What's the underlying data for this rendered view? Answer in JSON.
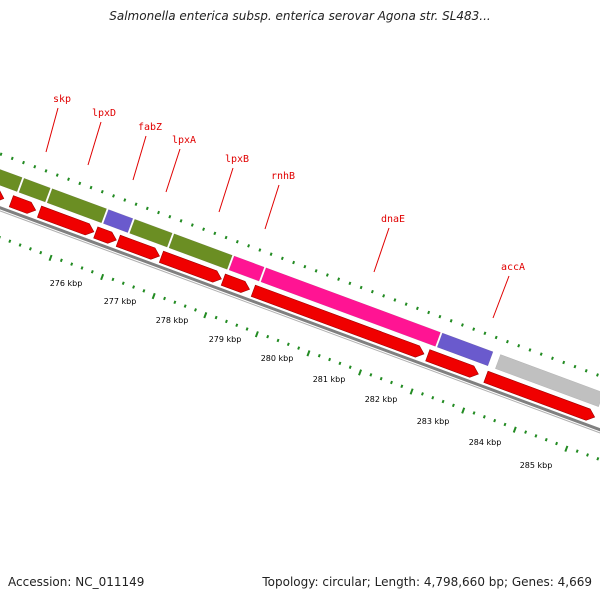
{
  "title": "Salmonella enterica subsp. enterica serovar Agona str. SL483...",
  "footer": {
    "accession": "Accession: NC_011149",
    "summary": "Topology: circular; Length: 4,798,660 bp; Genes: 4,669"
  },
  "colors": {
    "gene_label": "#e00000",
    "cds_arrow": "#f00000",
    "olive": "#6b8e23",
    "purple": "#6a5acd",
    "magenta": "#ff1493",
    "gray": "#c0c0c0",
    "tick_green": "#228b22",
    "backbone": "#808080"
  },
  "gene_labels": [
    "skp",
    "lpxD",
    "fabZ",
    "lpxA",
    "lpxB",
    "rnhB",
    "dnaE",
    "accA"
  ],
  "kbp_labels": [
    "276 kbp",
    "277 kbp",
    "278 kbp",
    "279 kbp",
    "280 kbp",
    "281 kbp",
    "282 kbp",
    "283 kbp",
    "284 kbp",
    "285 kbp"
  ],
  "feature_blocks": [
    {
      "name": "olive-1",
      "color": "olive"
    },
    {
      "name": "olive-2",
      "color": "olive"
    },
    {
      "name": "olive-3",
      "color": "olive"
    },
    {
      "name": "purple-1",
      "color": "purple"
    },
    {
      "name": "olive-4",
      "color": "olive"
    },
    {
      "name": "olive-5",
      "color": "olive"
    },
    {
      "name": "magenta-1",
      "color": "magenta"
    },
    {
      "name": "magenta-2",
      "color": "magenta"
    },
    {
      "name": "purple-2",
      "color": "purple"
    },
    {
      "name": "gray-1",
      "color": "gray"
    }
  ]
}
